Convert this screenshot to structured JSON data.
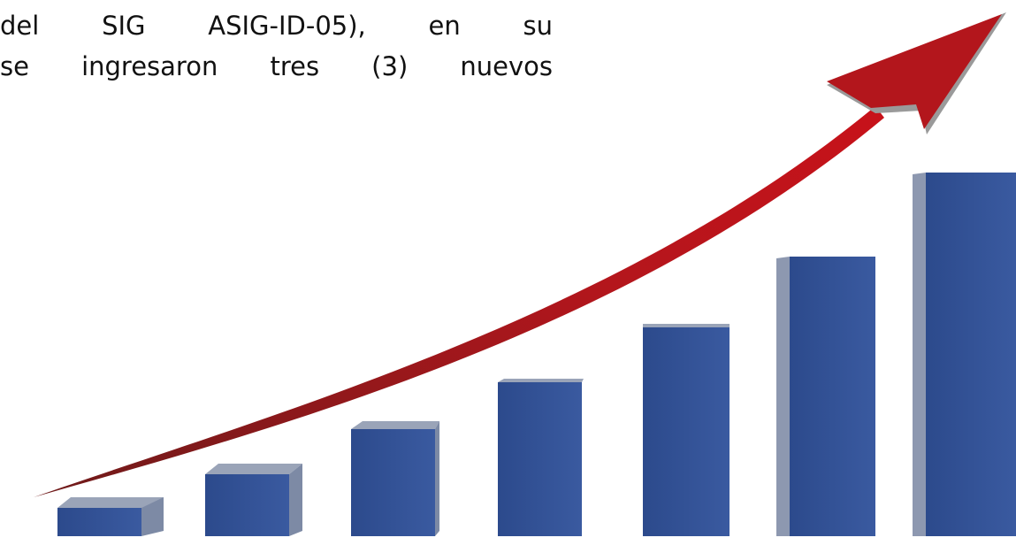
{
  "text_lines": [
    "del SIG ASIG-ID-05), en su",
    "se ingresaron tres (3) nuevos"
  ]
}
